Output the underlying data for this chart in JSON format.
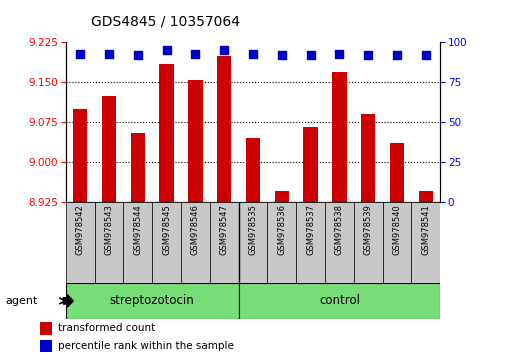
{
  "title": "GDS4845 / 10357064",
  "samples": [
    "GSM978542",
    "GSM978543",
    "GSM978544",
    "GSM978545",
    "GSM978546",
    "GSM978547",
    "GSM978535",
    "GSM978536",
    "GSM978537",
    "GSM978538",
    "GSM978539",
    "GSM978540",
    "GSM978541"
  ],
  "transformed_counts": [
    9.1,
    9.125,
    9.055,
    9.185,
    9.155,
    9.2,
    9.045,
    8.945,
    9.065,
    9.17,
    9.09,
    9.035,
    8.945
  ],
  "percentile_ranks": [
    93,
    93,
    92,
    95,
    93,
    95,
    93,
    92,
    92,
    93,
    92,
    92,
    92
  ],
  "group1_label": "streptozotocin",
  "group2_label": "control",
  "group1_count": 6,
  "group2_count": 7,
  "ylim_left": [
    8.925,
    9.225
  ],
  "ylim_right": [
    0,
    100
  ],
  "yticks_left": [
    8.925,
    9.0,
    9.075,
    9.15,
    9.225
  ],
  "yticks_right": [
    0,
    25,
    50,
    75,
    100
  ],
  "bar_color": "#cc0000",
  "dot_color": "#0000cc",
  "group_bg": "#77dd77",
  "sample_bg": "#c8c8c8",
  "agent_label": "agent",
  "legend_bar": "transformed count",
  "legend_dot": "percentile rank within the sample",
  "bar_width": 0.5,
  "dot_size": 30,
  "fig_width": 5.06,
  "fig_height": 3.54
}
